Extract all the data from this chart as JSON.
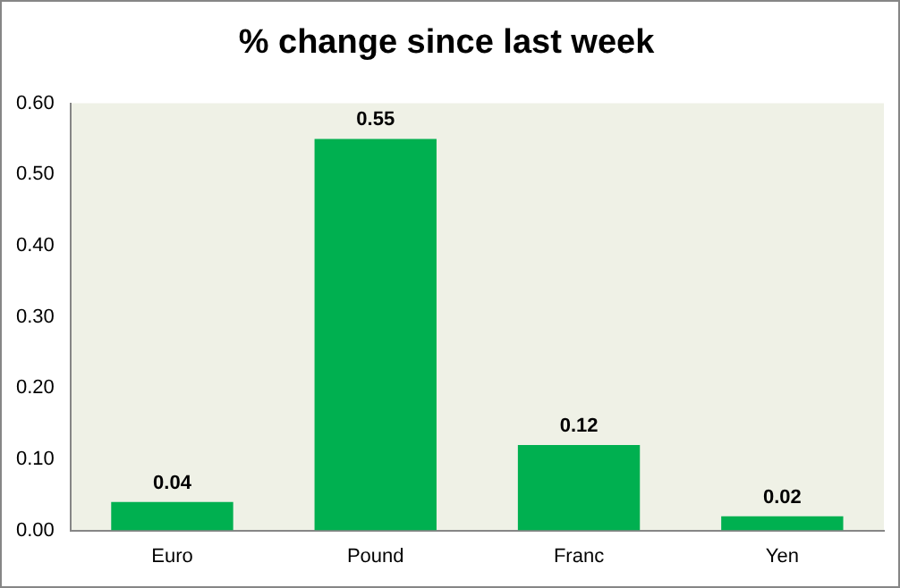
{
  "chart_data": {
    "type": "bar",
    "title": "% change since last week",
    "categories": [
      "Euro",
      "Pound",
      "Franc",
      "Yen"
    ],
    "values": [
      0.04,
      0.55,
      0.12,
      0.02
    ],
    "color": "#00b050",
    "ylim": [
      0,
      0.6
    ],
    "yticks": [
      {
        "value": 0,
        "label": "0.00"
      },
      {
        "value": 0.1,
        "label": "0.10"
      },
      {
        "value": 0.2,
        "label": "0.20"
      },
      {
        "value": 0.3,
        "label": "0.30"
      },
      {
        "value": 0.4,
        "label": "0.40"
      },
      {
        "value": 0.5,
        "label": "0.50"
      },
      {
        "value": 0.6,
        "label": "0.60"
      }
    ],
    "grid": false,
    "legend": false,
    "data_labels": true
  }
}
